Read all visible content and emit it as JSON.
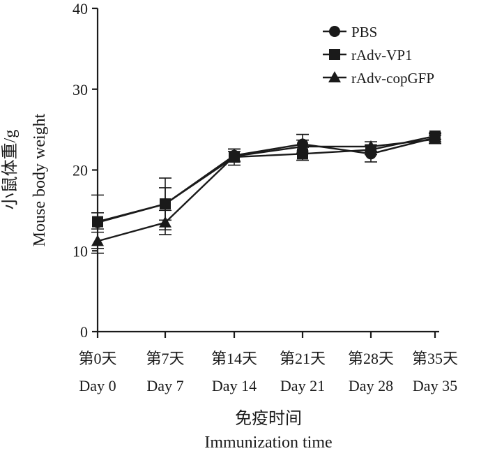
{
  "chart_data": {
    "type": "line",
    "title": "",
    "categories": [
      [
        "第0天",
        "Day 0"
      ],
      [
        "第7天",
        "Day 7"
      ],
      [
        "第14天",
        "Day 14"
      ],
      [
        "第21天",
        "Day 21"
      ],
      [
        "第28天",
        "Day 28"
      ],
      [
        "第35天",
        "Day 35"
      ]
    ],
    "xlabel_cn": "免疫时间",
    "xlabel_en": "Immunization time",
    "ylabel_cn": "小鼠体重/g",
    "ylabel_en": "Mouse body weight",
    "ylim": [
      0,
      40
    ],
    "yticks": [
      0,
      10,
      20,
      30,
      40
    ],
    "legend_position": "top-right",
    "series": [
      {
        "name": "PBS",
        "marker": "circle",
        "values": [
          13.5,
          15.8,
          21.8,
          23.2,
          22.0,
          24.0
        ],
        "errors": [
          1.2,
          2.0,
          0.8,
          1.2,
          1.0,
          0.5
        ]
      },
      {
        "name": "rAdv-VP1",
        "marker": "square",
        "values": [
          13.6,
          15.8,
          21.6,
          22.0,
          22.5,
          24.2
        ],
        "errors": [
          3.3,
          3.2,
          1.0,
          0.8,
          0.6,
          0.4
        ]
      },
      {
        "name": "rAdv-copGFP",
        "marker": "triangle",
        "values": [
          11.2,
          13.5,
          21.7,
          22.9,
          22.9,
          23.8
        ],
        "errors": [
          1.5,
          1.5,
          0.6,
          0.8,
          0.6,
          0.5
        ]
      }
    ]
  }
}
